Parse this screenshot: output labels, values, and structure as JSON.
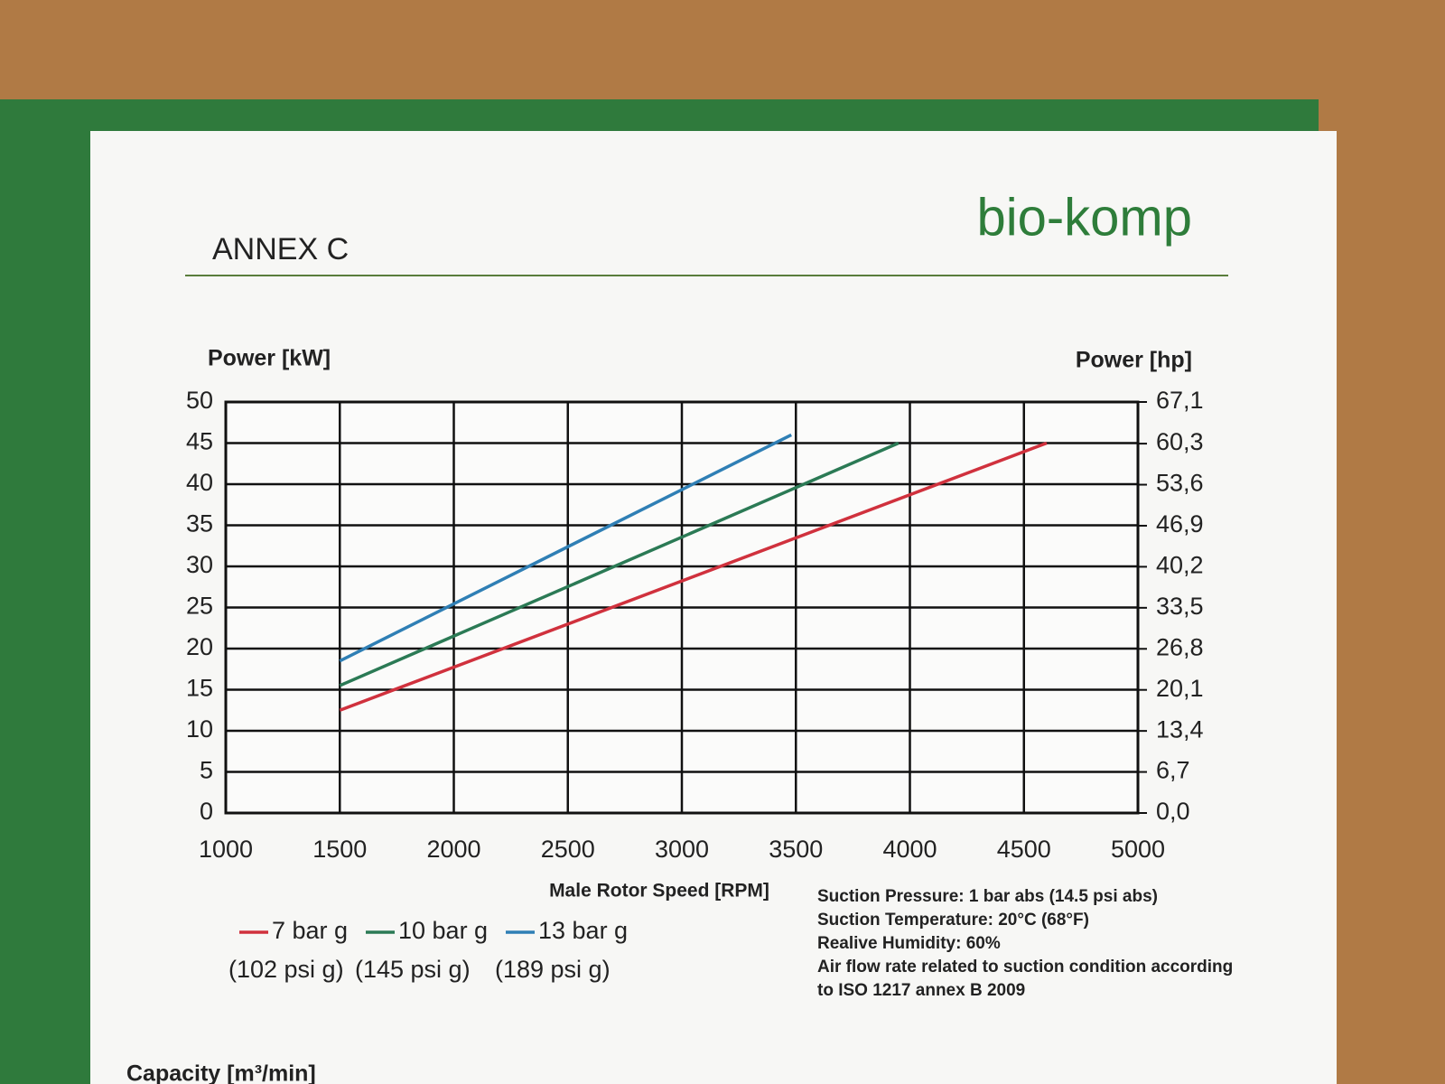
{
  "chart_data": {
    "type": "line",
    "title": "ANNEX C",
    "brand": "bio-komp",
    "ylabel": "Power [kW]",
    "y2label": "Power [hp]",
    "xlabel": "Male Rotor Speed [RPM]",
    "xlim": [
      1000,
      5000
    ],
    "xticks": [
      1000,
      1500,
      2000,
      2500,
      3000,
      3500,
      4000,
      4500,
      5000
    ],
    "ylim": [
      0,
      50
    ],
    "yticks": [
      0,
      5,
      10,
      15,
      20,
      25,
      30,
      35,
      40,
      45,
      50
    ],
    "y2lim": [
      0,
      67.1
    ],
    "y2ticks": [
      {
        "value": 0,
        "label": "0,0"
      },
      {
        "value": 6.7,
        "label": "6,7"
      },
      {
        "value": 13.4,
        "label": "13,4"
      },
      {
        "value": 20.1,
        "label": "20,1"
      },
      {
        "value": 26.8,
        "label": "26,8"
      },
      {
        "value": 33.5,
        "label": "33,5"
      },
      {
        "value": 40.2,
        "label": "40,2"
      },
      {
        "value": 46.9,
        "label": "46,9"
      },
      {
        "value": 53.6,
        "label": "53,6"
      },
      {
        "value": 60.3,
        "label": "60,3"
      },
      {
        "value": 67.1,
        "label": "67,1"
      }
    ],
    "grid": true,
    "series": [
      {
        "name": "7 bar g",
        "sublabel": "(102 psi g)",
        "color": "#d0313d",
        "x": [
          1500,
          4600
        ],
        "values": [
          12.5,
          45
        ]
      },
      {
        "name": "10 bar g",
        "sublabel": "(145 psi g)",
        "color": "#2b7a55",
        "x": [
          1500,
          3950
        ],
        "values": [
          15.5,
          45
        ]
      },
      {
        "name": "13 bar g",
        "sublabel": "(189 psi g)",
        "color": "#2f7fb5",
        "x": [
          1500,
          3480
        ],
        "values": [
          18.5,
          46
        ]
      }
    ],
    "notes": [
      "Suction Pressure:   1 bar abs (14.5 psi abs)",
      "Suction Temperature:  20°C (68°F)",
      "Realive Humidity:   60%",
      "Air flow rate related to suction condition according",
      "to ISO 1217 annex B 2009"
    ],
    "footer": "Capacity [m³/min]"
  }
}
